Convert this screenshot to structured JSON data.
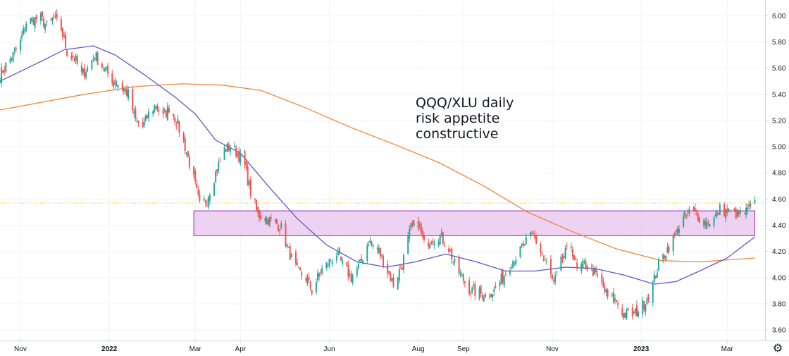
{
  "chart_data": {
    "type": "candlestick",
    "annotation": [
      "QQQ/XLU daily",
      "risk appetite",
      "constructive"
    ],
    "x_ticks": [
      {
        "label": "Nov",
        "date": "2021-11-01"
      },
      {
        "label": "2022",
        "date": "2022-01-01",
        "bold": true
      },
      {
        "label": "Mar",
        "date": "2022-03-01"
      },
      {
        "label": "Apr",
        "date": "2022-04-01"
      },
      {
        "label": "Jun",
        "date": "2022-06-01"
      },
      {
        "label": "Aug",
        "date": "2022-08-01"
      },
      {
        "label": "Sep",
        "date": "2022-09-01"
      },
      {
        "label": "Nov",
        "date": "2022-11-01"
      },
      {
        "label": "2023",
        "date": "2023-01-01",
        "bold": true
      },
      {
        "label": "Mar",
        "date": "2023-03-01"
      }
    ],
    "y_ticks": [
      "6.00",
      "5.80",
      "5.60",
      "5.40",
      "5.20",
      "5.00",
      "4.80",
      "4.60",
      "4.40",
      "4.20",
      "4.00",
      "3.80",
      "3.60"
    ],
    "ylim": [
      3.52,
      6.12
    ],
    "xlim": [
      "2021-10-18",
      "2023-03-27"
    ],
    "last_price": 4.57,
    "resistance_zone": {
      "from": "2022-02-28",
      "to": "2023-03-20",
      "low": 4.32,
      "high": 4.51
    },
    "colors": {
      "up": "#26a69a",
      "down": "#ef5350",
      "ma_fast": "#5b57c9",
      "ma_slow": "#f0853a",
      "zone_fill": "#e8c7ef",
      "zone_edge": "#9b2fb0",
      "last_line": "#f4b400"
    },
    "anchors": [
      [
        "2021-10-18",
        5.55
      ],
      [
        "2021-10-22",
        5.62
      ],
      [
        "2021-10-27",
        5.7
      ],
      [
        "2021-11-01",
        5.8
      ],
      [
        "2021-11-05",
        5.95
      ],
      [
        "2021-11-10",
        5.97
      ],
      [
        "2021-11-15",
        5.98
      ],
      [
        "2021-11-19",
        5.92
      ],
      [
        "2021-11-24",
        5.98
      ],
      [
        "2021-11-29",
        5.9
      ],
      [
        "2021-12-03",
        5.72
      ],
      [
        "2021-12-08",
        5.68
      ],
      [
        "2021-12-13",
        5.55
      ],
      [
        "2021-12-17",
        5.6
      ],
      [
        "2021-12-22",
        5.7
      ],
      [
        "2021-12-28",
        5.6
      ],
      [
        "2022-01-04",
        5.5
      ],
      [
        "2022-01-10",
        5.45
      ],
      [
        "2022-01-14",
        5.4
      ],
      [
        "2022-01-19",
        5.2
      ],
      [
        "2022-01-24",
        5.15
      ],
      [
        "2022-01-28",
        5.25
      ],
      [
        "2022-02-02",
        5.32
      ],
      [
        "2022-02-07",
        5.22
      ],
      [
        "2022-02-11",
        5.3
      ],
      [
        "2022-02-16",
        5.2
      ],
      [
        "2022-02-22",
        5.0
      ],
      [
        "2022-02-28",
        4.75
      ],
      [
        "2022-03-04",
        4.55
      ],
      [
        "2022-03-09",
        4.6
      ],
      [
        "2022-03-15",
        4.8
      ],
      [
        "2022-03-21",
        4.98
      ],
      [
        "2022-03-25",
        5.0
      ],
      [
        "2022-03-30",
        4.95
      ],
      [
        "2022-04-04",
        4.85
      ],
      [
        "2022-04-08",
        4.65
      ],
      [
        "2022-04-13",
        4.48
      ],
      [
        "2022-04-19",
        4.45
      ],
      [
        "2022-04-25",
        4.42
      ],
      [
        "2022-04-29",
        4.38
      ],
      [
        "2022-05-04",
        4.2
      ],
      [
        "2022-05-10",
        4.05
      ],
      [
        "2022-05-16",
        4.0
      ],
      [
        "2022-05-20",
        3.9
      ],
      [
        "2022-05-26",
        4.05
      ],
      [
        "2022-06-01",
        4.12
      ],
      [
        "2022-06-06",
        4.18
      ],
      [
        "2022-06-10",
        4.1
      ],
      [
        "2022-06-16",
        4.0
      ],
      [
        "2022-06-22",
        4.1
      ],
      [
        "2022-06-28",
        4.28
      ],
      [
        "2022-07-05",
        4.2
      ],
      [
        "2022-07-11",
        4.05
      ],
      [
        "2022-07-15",
        3.95
      ],
      [
        "2022-07-21",
        4.1
      ],
      [
        "2022-07-27",
        4.38
      ],
      [
        "2022-08-01",
        4.42
      ],
      [
        "2022-08-05",
        4.25
      ],
      [
        "2022-08-10",
        4.3
      ],
      [
        "2022-08-16",
        4.32
      ],
      [
        "2022-08-22",
        4.22
      ],
      [
        "2022-08-26",
        4.1
      ],
      [
        "2022-08-31",
        4.0
      ],
      [
        "2022-09-06",
        3.9
      ],
      [
        "2022-09-12",
        3.88
      ],
      [
        "2022-09-16",
        3.87
      ],
      [
        "2022-09-22",
        3.9
      ],
      [
        "2022-09-28",
        4.0
      ],
      [
        "2022-10-04",
        4.12
      ],
      [
        "2022-10-10",
        4.2
      ],
      [
        "2022-10-14",
        4.28
      ],
      [
        "2022-10-19",
        4.32
      ],
      [
        "2022-10-24",
        4.2
      ],
      [
        "2022-10-28",
        4.1
      ],
      [
        "2022-11-02",
        3.95
      ],
      [
        "2022-11-08",
        4.15
      ],
      [
        "2022-11-14",
        4.25
      ],
      [
        "2022-11-18",
        4.05
      ],
      [
        "2022-11-23",
        4.1
      ],
      [
        "2022-11-29",
        4.05
      ],
      [
        "2022-12-05",
        3.95
      ],
      [
        "2022-12-09",
        3.85
      ],
      [
        "2022-12-15",
        3.82
      ],
      [
        "2022-12-20",
        3.72
      ],
      [
        "2022-12-27",
        3.72
      ],
      [
        "2023-01-03",
        3.8
      ],
      [
        "2023-01-09",
        3.95
      ],
      [
        "2023-01-13",
        4.1
      ],
      [
        "2023-01-19",
        4.22
      ],
      [
        "2023-01-24",
        4.32
      ],
      [
        "2023-01-30",
        4.45
      ],
      [
        "2023-02-03",
        4.5
      ],
      [
        "2023-02-08",
        4.48
      ],
      [
        "2023-02-14",
        4.42
      ],
      [
        "2023-02-20",
        4.45
      ],
      [
        "2023-02-24",
        4.52
      ],
      [
        "2023-03-02",
        4.5
      ],
      [
        "2023-03-08",
        4.48
      ],
      [
        "2023-03-14",
        4.5
      ],
      [
        "2023-03-20",
        4.56
      ]
    ],
    "ma_fast": [
      [
        "2021-10-18",
        5.5
      ],
      [
        "2021-11-15",
        5.65
      ],
      [
        "2021-12-01",
        5.74
      ],
      [
        "2021-12-21",
        5.77
      ],
      [
        "2022-01-05",
        5.7
      ],
      [
        "2022-01-25",
        5.55
      ],
      [
        "2022-02-15",
        5.38
      ],
      [
        "2022-03-01",
        5.25
      ],
      [
        "2022-03-15",
        5.05
      ],
      [
        "2022-04-01",
        4.95
      ],
      [
        "2022-04-20",
        4.7
      ],
      [
        "2022-05-10",
        4.45
      ],
      [
        "2022-05-30",
        4.25
      ],
      [
        "2022-06-20",
        4.12
      ],
      [
        "2022-07-10",
        4.08
      ],
      [
        "2022-07-30",
        4.12
      ],
      [
        "2022-08-20",
        4.18
      ],
      [
        "2022-09-10",
        4.12
      ],
      [
        "2022-09-30",
        4.05
      ],
      [
        "2022-10-20",
        4.05
      ],
      [
        "2022-11-10",
        4.08
      ],
      [
        "2022-11-30",
        4.07
      ],
      [
        "2022-12-20",
        4.02
      ],
      [
        "2023-01-10",
        3.95
      ],
      [
        "2023-01-25",
        3.97
      ],
      [
        "2023-02-10",
        4.05
      ],
      [
        "2023-03-01",
        4.15
      ],
      [
        "2023-03-20",
        4.31
      ]
    ],
    "ma_slow": [
      [
        "2021-10-18",
        5.28
      ],
      [
        "2021-12-15",
        5.4
      ],
      [
        "2022-01-20",
        5.46
      ],
      [
        "2022-02-20",
        5.48
      ],
      [
        "2022-03-20",
        5.47
      ],
      [
        "2022-04-15",
        5.43
      ],
      [
        "2022-05-15",
        5.3
      ],
      [
        "2022-06-15",
        5.15
      ],
      [
        "2022-07-15",
        5.02
      ],
      [
        "2022-08-15",
        4.88
      ],
      [
        "2022-09-15",
        4.7
      ],
      [
        "2022-10-15",
        4.5
      ],
      [
        "2022-11-15",
        4.35
      ],
      [
        "2022-12-15",
        4.22
      ],
      [
        "2023-01-15",
        4.13
      ],
      [
        "2023-02-10",
        4.12
      ],
      [
        "2023-03-20",
        4.15
      ]
    ]
  }
}
